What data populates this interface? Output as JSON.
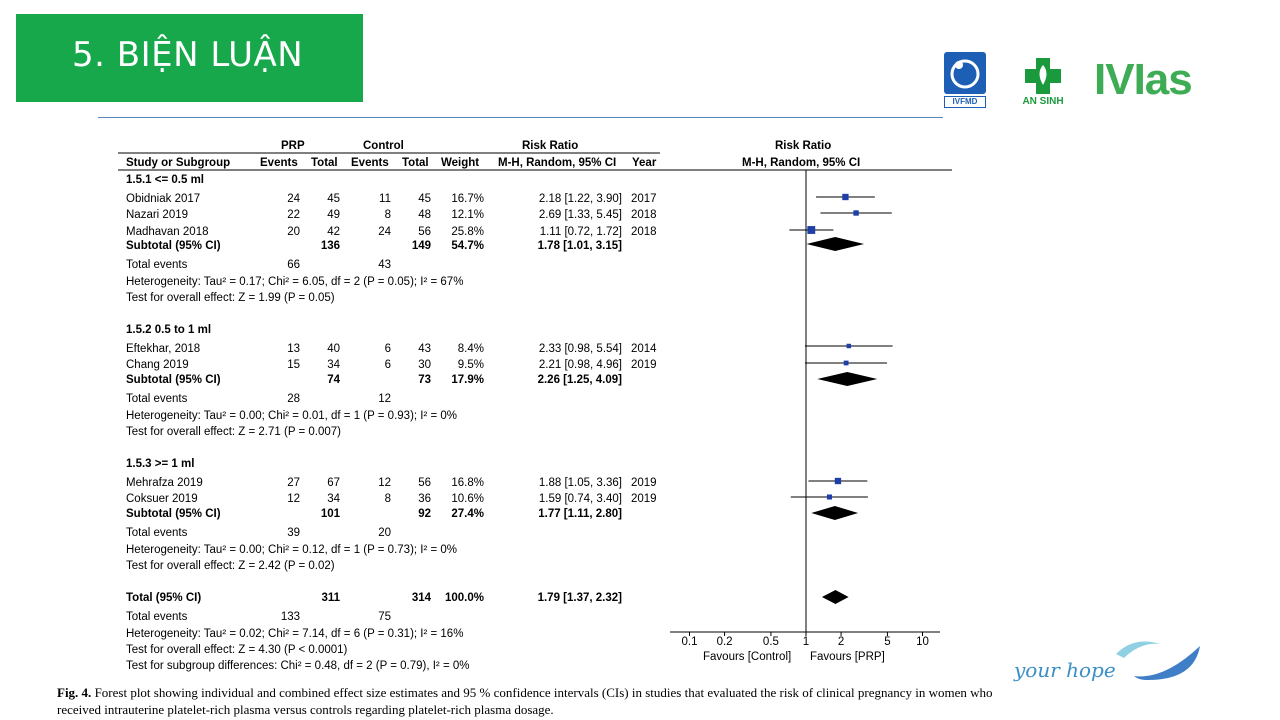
{
  "slide": {
    "title": "5. BIỆN LUẬN",
    "tagline": "your hope",
    "logos": {
      "ivfmd": "IVFMD",
      "ansinh": "AN SINH",
      "ivias": "IVIas"
    },
    "colors": {
      "title_bg": "#17a84b",
      "rule": "#5a86b8",
      "marker": "#1f3fa8"
    }
  },
  "forest": {
    "headers": {
      "prp": "PRP",
      "control": "Control",
      "rr_left": "Risk Ratio",
      "rr_right": "Risk Ratio",
      "study": "Study or Subgroup",
      "events1": "Events",
      "total1": "Total",
      "events2": "Events",
      "total2": "Total",
      "weight": "Weight",
      "method_left": "M-H, Random, 95% CI",
      "year": "Year",
      "method_right": "M-H, Random, 95% CI"
    },
    "subgroups": [
      {
        "title": "1.5.1 <= 0.5 ml",
        "studies": [
          {
            "name": "Obidniak 2017",
            "e1": "24",
            "t1": "45",
            "e2": "11",
            "t2": "45",
            "weight": "16.7%",
            "ci": "2.18 [1.22, 3.90]",
            "year": "2017",
            "rr": 2.18,
            "lo": 1.22,
            "hi": 3.9
          },
          {
            "name": "Nazari 2019",
            "e1": "22",
            "t1": "49",
            "e2": "8",
            "t2": "48",
            "weight": "12.1%",
            "ci": "2.69 [1.33, 5.45]",
            "year": "2018",
            "rr": 2.69,
            "lo": 1.33,
            "hi": 5.45
          },
          {
            "name": "Madhavan 2018",
            "e1": "20",
            "t1": "42",
            "e2": "24",
            "t2": "56",
            "weight": "25.8%",
            "ci": "1.11 [0.72, 1.72]",
            "year": "2018",
            "rr": 1.11,
            "lo": 0.72,
            "hi": 1.72
          }
        ],
        "subtotal": {
          "label": "Subtotal (95% CI)",
          "t1": "136",
          "t2": "149",
          "weight": "54.7%",
          "ci": "1.78 [1.01, 3.15]",
          "rr": 1.78,
          "lo": 1.01,
          "hi": 3.15
        },
        "events": {
          "label": "Total events",
          "e1": "66",
          "e2": "43"
        },
        "heterogeneity": "Heterogeneity: Tau² = 0.17; Chi² = 6.05, df = 2 (P = 0.05); I² = 67%",
        "overall": "Test for overall effect: Z = 1.99 (P = 0.05)"
      },
      {
        "title": "1.5.2 0.5 to 1 ml",
        "studies": [
          {
            "name": "Eftekhar, 2018",
            "e1": "13",
            "t1": "40",
            "e2": "6",
            "t2": "43",
            "weight": "8.4%",
            "ci": "2.33 [0.98, 5.54]",
            "year": "2014",
            "rr": 2.33,
            "lo": 0.98,
            "hi": 5.54
          },
          {
            "name": "Chang 2019",
            "e1": "15",
            "t1": "34",
            "e2": "6",
            "t2": "30",
            "weight": "9.5%",
            "ci": "2.21 [0.98, 4.96]",
            "year": "2019",
            "rr": 2.21,
            "lo": 0.98,
            "hi": 4.96
          }
        ],
        "subtotal": {
          "label": "Subtotal (95% CI)",
          "t1": "74",
          "t2": "73",
          "weight": "17.9%",
          "ci": "2.26 [1.25, 4.09]",
          "rr": 2.26,
          "lo": 1.25,
          "hi": 4.09
        },
        "events": {
          "label": "Total events",
          "e1": "28",
          "e2": "12"
        },
        "heterogeneity": "Heterogeneity: Tau² = 0.00; Chi² = 0.01, df = 1 (P = 0.93); I² = 0%",
        "overall": "Test for overall effect: Z = 2.71 (P = 0.007)"
      },
      {
        "title": "1.5.3 >= 1 ml",
        "studies": [
          {
            "name": "Mehrafza 2019",
            "e1": "27",
            "t1": "67",
            "e2": "12",
            "t2": "56",
            "weight": "16.8%",
            "ci": "1.88 [1.05, 3.36]",
            "year": "2019",
            "rr": 1.88,
            "lo": 1.05,
            "hi": 3.36
          },
          {
            "name": "Coksuer 2019",
            "e1": "12",
            "t1": "34",
            "e2": "8",
            "t2": "36",
            "weight": "10.6%",
            "ci": "1.59 [0.74, 3.40]",
            "year": "2019",
            "rr": 1.59,
            "lo": 0.74,
            "hi": 3.4
          }
        ],
        "subtotal": {
          "label": "Subtotal (95% CI)",
          "t1": "101",
          "t2": "92",
          "weight": "27.4%",
          "ci": "1.77 [1.11, 2.80]",
          "rr": 1.77,
          "lo": 1.11,
          "hi": 2.8
        },
        "events": {
          "label": "Total events",
          "e1": "39",
          "e2": "20"
        },
        "heterogeneity": "Heterogeneity: Tau² = 0.00; Chi² = 0.12, df = 1 (P = 0.73); I² = 0%",
        "overall": "Test for overall effect: Z = 2.42 (P = 0.02)"
      }
    ],
    "total": {
      "label": "Total (95% CI)",
      "t1": "311",
      "t2": "314",
      "weight": "100.0%",
      "ci": "1.79 [1.37, 2.32]",
      "rr": 1.79,
      "lo": 1.37,
      "hi": 2.32,
      "events": {
        "label": "Total events",
        "e1": "133",
        "e2": "75"
      },
      "heterogeneity": "Heterogeneity: Tau² = 0.02; Chi² = 7.14, df = 6 (P = 0.31); I² = 16%",
      "overall": "Test for overall effect: Z = 4.30 (P < 0.0001)",
      "subgroup_diff": "Test for subgroup differences: Chi² = 0.48, df = 2 (P = 0.79), I² = 0%"
    },
    "axis": {
      "ticks": [
        0.1,
        0.2,
        0.5,
        1,
        2,
        5,
        10
      ],
      "tick_labels": [
        "0.1",
        "0.2",
        "0.5",
        "1",
        "2",
        "5",
        "10"
      ],
      "favours_left": "Favours [Control]",
      "favours_right": "Favours [PRP]"
    }
  },
  "chart_data": {
    "type": "forest",
    "title": "Risk Ratio M-H, Random, 95% CI",
    "scale": "log",
    "xlim": [
      0.1,
      10
    ],
    "xticks": [
      0.1,
      0.2,
      0.5,
      1,
      2,
      5,
      10
    ],
    "studies": [
      {
        "name": "Obidniak 2017",
        "rr": 2.18,
        "lo": 1.22,
        "hi": 3.9,
        "weight": 16.7
      },
      {
        "name": "Nazari 2019",
        "rr": 2.69,
        "lo": 1.33,
        "hi": 5.45,
        "weight": 12.1
      },
      {
        "name": "Madhavan 2018",
        "rr": 1.11,
        "lo": 0.72,
        "hi": 1.72,
        "weight": 25.8
      },
      {
        "name": "Eftekhar, 2018",
        "rr": 2.33,
        "lo": 0.98,
        "hi": 5.54,
        "weight": 8.4
      },
      {
        "name": "Chang 2019",
        "rr": 2.21,
        "lo": 0.98,
        "hi": 4.96,
        "weight": 9.5
      },
      {
        "name": "Mehrafza 2019",
        "rr": 1.88,
        "lo": 1.05,
        "hi": 3.36,
        "weight": 16.8
      },
      {
        "name": "Coksuer 2019",
        "rr": 1.59,
        "lo": 0.74,
        "hi": 3.4,
        "weight": 10.6
      }
    ],
    "subtotals": [
      {
        "name": "1.5.1 <= 0.5 ml",
        "rr": 1.78,
        "lo": 1.01,
        "hi": 3.15
      },
      {
        "name": "1.5.2 0.5 to 1 ml",
        "rr": 2.26,
        "lo": 1.25,
        "hi": 4.09
      },
      {
        "name": "1.5.3 >= 1 ml",
        "rr": 1.77,
        "lo": 1.11,
        "hi": 2.8
      }
    ],
    "overall": {
      "rr": 1.79,
      "lo": 1.37,
      "hi": 2.32
    }
  },
  "caption": {
    "label": "Fig. 4.",
    "text": "Forest plot showing individual and combined effect size estimates and 95 % confidence intervals (CIs) in studies that evaluated the risk of clinical pregnancy in women who received intrauterine platelet-rich plasma versus controls regarding platelet-rich plasma dosage."
  }
}
